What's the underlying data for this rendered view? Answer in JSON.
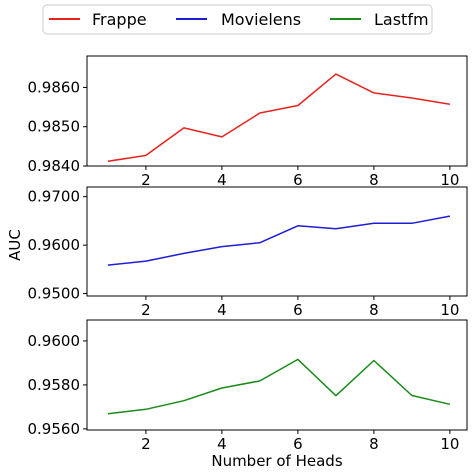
{
  "chart_data": {
    "type": "line",
    "shared_xlabel": "Number of Heads",
    "shared_ylabel": "AUC",
    "legend": {
      "placement": "top-center",
      "entries": [
        {
          "name": "Frappe",
          "color": "#e8231f"
        },
        {
          "name": "Movielens",
          "color": "#1e1ed6"
        },
        {
          "name": "Lastfm",
          "color": "#1a8a1a"
        }
      ]
    },
    "x": [
      1,
      2,
      3,
      4,
      5,
      6,
      7,
      8,
      9,
      10
    ],
    "xlim": [
      0.45,
      10.45
    ],
    "xticks": [
      2,
      4,
      6,
      8,
      10
    ],
    "panels": [
      {
        "name": "Frappe",
        "color": "#e8231f",
        "ylim": [
          0.984,
          0.9868
        ],
        "yticks": [
          0.984,
          0.985,
          0.986
        ],
        "ytick_labels": [
          "0.9840",
          "0.9850",
          "0.9860"
        ],
        "values": [
          0.98412,
          0.98427,
          0.98497,
          0.98474,
          0.98535,
          0.98554,
          0.98634,
          0.98586,
          0.98573,
          0.98557
        ]
      },
      {
        "name": "Movielens",
        "color": "#1e1ed6",
        "ylim": [
          0.9495,
          0.972
        ],
        "yticks": [
          0.95,
          0.96,
          0.97
        ],
        "ytick_labels": [
          "0.9500",
          "0.9600",
          "0.9700"
        ],
        "values": [
          0.95588,
          0.9567,
          0.9583,
          0.9597,
          0.9605,
          0.964,
          0.9634,
          0.9645,
          0.9645,
          0.966
        ]
      },
      {
        "name": "Lastfm",
        "color": "#1a8a1a",
        "ylim": [
          0.95595,
          0.96095
        ],
        "yticks": [
          0.956,
          0.958,
          0.96
        ],
        "ytick_labels": [
          "0.9560",
          "0.9580",
          "0.9600"
        ],
        "values": [
          0.95669,
          0.95689,
          0.95728,
          0.95786,
          0.95818,
          0.95916,
          0.95751,
          0.95911,
          0.95752,
          0.95712
        ]
      }
    ]
  }
}
